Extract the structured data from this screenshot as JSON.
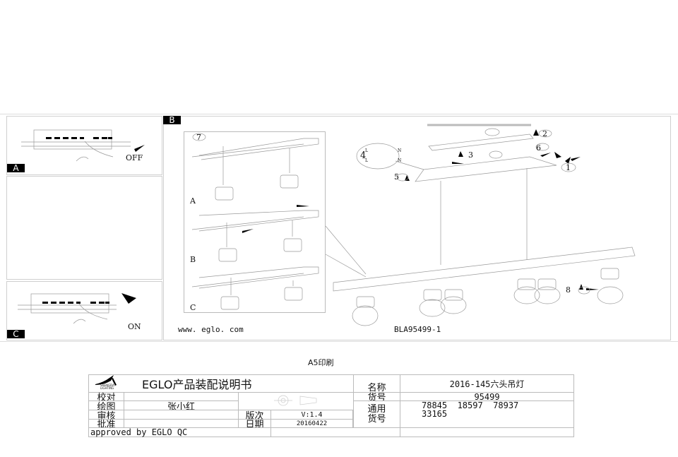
{
  "panels": {
    "a": {
      "label": "A",
      "caption": "OFF"
    },
    "b": {
      "label": "B",
      "inset_steps": [
        "7"
      ],
      "inset_labels": [
        "A",
        "B",
        "C"
      ],
      "step_numbers": [
        "1",
        "2",
        "3",
        "4",
        "5",
        "6",
        "8"
      ],
      "terminal_labels": [
        "L",
        "L",
        "N",
        "N"
      ],
      "website": "www. eglo. com",
      "drawing_code": "BLA95499-1"
    },
    "c": {
      "label": "C",
      "caption": "ON"
    }
  },
  "print_note": "A5印刷",
  "title_block": {
    "logo_text": "SHENGDA LIGHTING",
    "title": "EGLO产品装配说明书",
    "rows": {
      "check_label": "校对",
      "draw_label": "绘图",
      "draw_value": "张小红",
      "review_label": "审核",
      "approve_label": "批准",
      "version_label": "版次",
      "version_value": "V:1.4",
      "date_label": "日期",
      "date_value": "20160422",
      "approved_by": "approved by EGLO QC"
    },
    "name_label": "名称",
    "name_value": "2016-145六头吊灯",
    "item_label": "货号",
    "item_value": "95499",
    "common_label_1": "通用",
    "common_label_2": "货号",
    "common_values_1": "78845  18597  78937",
    "common_values_2": "33165"
  }
}
